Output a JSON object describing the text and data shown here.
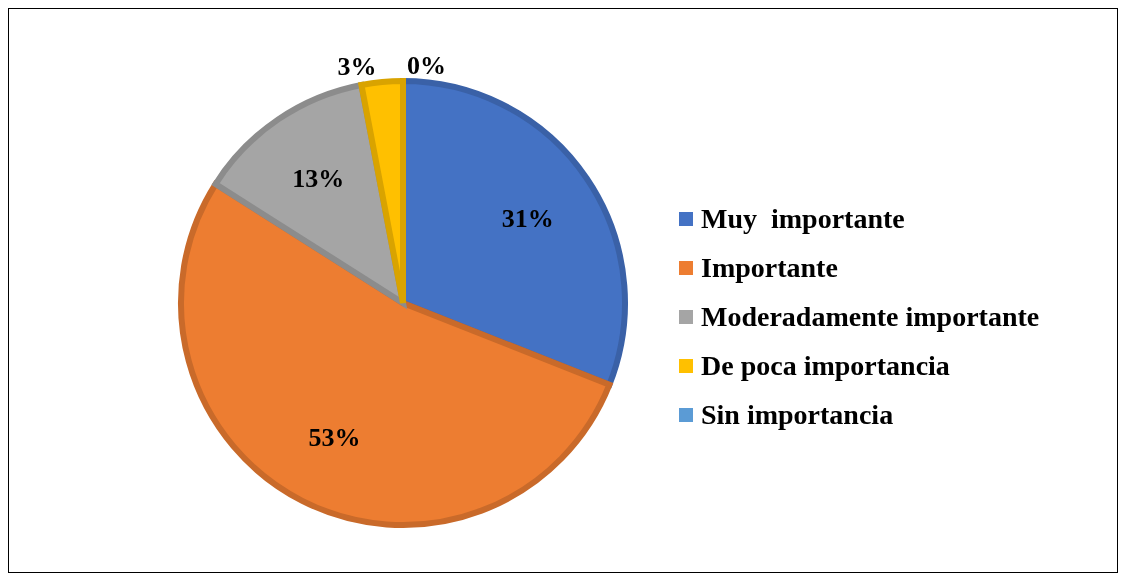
{
  "chart_data": {
    "type": "pie",
    "categories": [
      "Muy  importante",
      "Importante",
      "Moderadamente importante",
      "De poca importancia",
      "Sin importancia"
    ],
    "values": [
      31,
      53,
      13,
      3,
      0
    ],
    "colors": [
      "#4472c4",
      "#ed7d31",
      "#a5a5a5",
      "#ffc000",
      "#5b9bd5"
    ],
    "value_labels": [
      "31%",
      "53%",
      "13%",
      "3%",
      "0%"
    ],
    "legend": "right"
  }
}
